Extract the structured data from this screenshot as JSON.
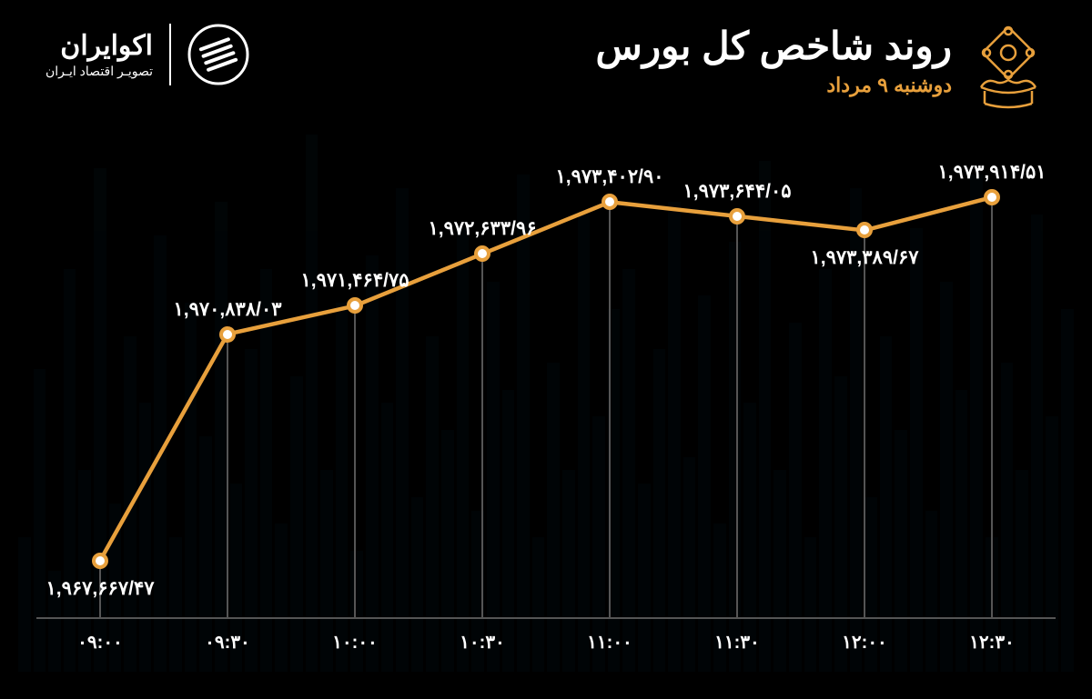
{
  "brand": {
    "name": "اکوایران",
    "sub": "تصویـر اقتصاد ایـران"
  },
  "title": {
    "main": "روند شاخص کل بورس",
    "date": "دوشنبه ۹ مرداد"
  },
  "colors": {
    "background": "#000000",
    "text": "#ffffff",
    "accent": "#e8a03c",
    "line": "#e8a03c",
    "drop": "#555555",
    "axis_line": "#555555",
    "marker_fill": "#ffffff",
    "marker_border": "#e8a03c",
    "bg_bars": "#0a3a4a"
  },
  "chart": {
    "type": "line",
    "line_width": 5,
    "marker_size": 18,
    "marker_border_width": 4,
    "label_fontsize": 21,
    "axis_fontsize": 20,
    "title_fontsize": 42,
    "date_fontsize": 22,
    "x_labels": [
      "۰۹:۰۰",
      "۰۹:۳۰",
      "۱۰:۰۰",
      "۱۰:۳۰",
      "۱۱:۰۰",
      "۱۱:۳۰",
      "۱۲:۰۰",
      "۱۲:۳۰"
    ],
    "value_labels": [
      "۱,۹۶۷,۶۶۷/۴۷",
      "۱,۹۷۰,۸۳۸/۰۳",
      "۱,۹۷۱,۴۶۴/۷۵",
      "۱,۹۷۲,۶۳۳/۹۶",
      "۱,۹۷۳,۴۰۲/۹۰",
      "۱,۹۷۳,۶۴۴/۰۵",
      "۱,۹۷۳,۳۸۹/۶۷",
      "۱,۹۷۳,۹۱۴/۵۱"
    ],
    "values": [
      1967667.47,
      1970838.03,
      1971464.75,
      1972633.96,
      1973402.9,
      1973644.05,
      1973389.67,
      1973914.51
    ],
    "y_percent": [
      88,
      40,
      34,
      23,
      12,
      15,
      18,
      11
    ],
    "label_pos": [
      "below",
      "above",
      "above",
      "above",
      "above",
      "above",
      "below",
      "above"
    ]
  }
}
